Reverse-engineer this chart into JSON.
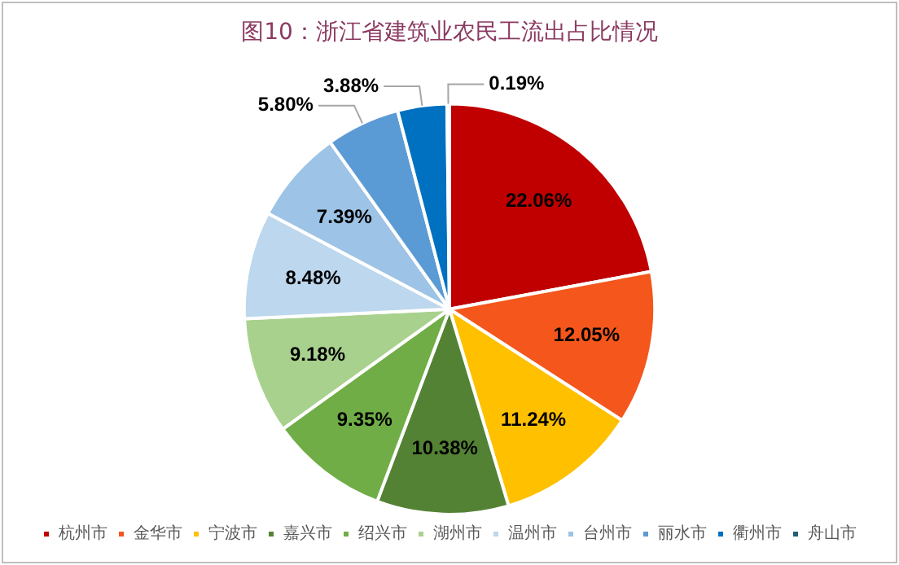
{
  "chart_data": {
    "type": "pie",
    "title": "图10：浙江省建筑业农民工流出占比情况",
    "categories": [
      "杭州市",
      "金华市",
      "宁波市",
      "嘉兴市",
      "绍兴市",
      "湖州市",
      "温州市",
      "台州市",
      "丽水市",
      "衢州市",
      "舟山市"
    ],
    "values": [
      22.06,
      12.05,
      11.24,
      10.38,
      9.35,
      9.18,
      8.48,
      7.39,
      5.8,
      3.88,
      0.19
    ],
    "colors": [
      "#c00000",
      "#f4561c",
      "#ffc000",
      "#548235",
      "#70ad47",
      "#a9d18e",
      "#bdd7ee",
      "#9dc3e6",
      "#5b9bd5",
      "#0070c0",
      "#255e79"
    ],
    "value_labels": [
      "22.06%",
      "12.05%",
      "11.24%",
      "10.38%",
      "9.35%",
      "9.18%",
      "8.48%",
      "7.39%",
      "5.80%",
      "3.88%",
      "0.19%"
    ],
    "legend": "bottom"
  }
}
